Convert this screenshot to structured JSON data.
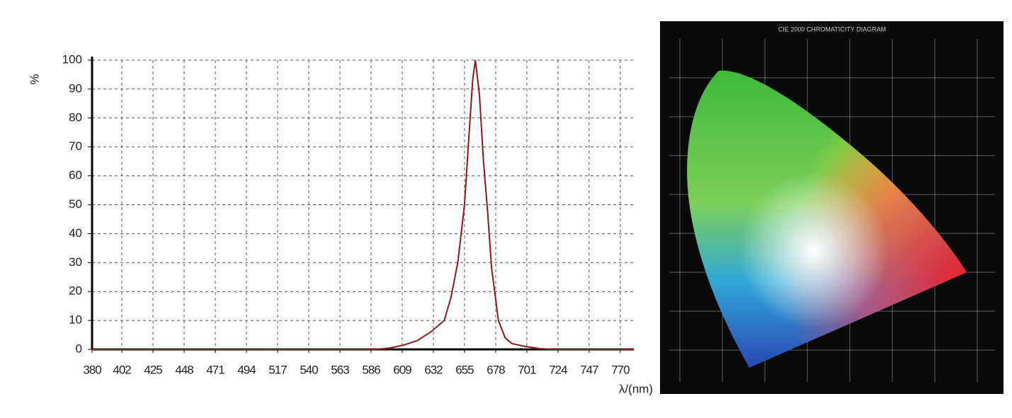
{
  "chart_data": {
    "type": "line",
    "ylabel": "%",
    "xlabel": "λ/(nm)",
    "x": [
      380,
      450,
      520,
      590,
      600,
      610,
      620,
      630,
      640,
      645,
      650,
      655,
      658,
      661,
      663,
      666,
      669,
      672,
      675,
      680,
      685,
      690,
      700,
      710,
      720,
      780
    ],
    "values": [
      0,
      0,
      0,
      0,
      0.5,
      1.5,
      3,
      6,
      10,
      18,
      30,
      50,
      72,
      93,
      100,
      88,
      65,
      48,
      28,
      10,
      4,
      2,
      1,
      0.3,
      0,
      0
    ],
    "color": "#8b1a1a",
    "xlim": [
      380,
      780
    ],
    "xticks": [
      380,
      402,
      425,
      448,
      471,
      494,
      517,
      540,
      563,
      586,
      609,
      632,
      655,
      678,
      701,
      724,
      747,
      770
    ],
    "ylim": [
      0,
      100
    ],
    "yticks": [
      0,
      10,
      20,
      30,
      40,
      50,
      60,
      70,
      80,
      90,
      100
    ],
    "grid": true
  },
  "diagram": {
    "title": "CIE 2000 CHROMATICITY DIAGRAM"
  }
}
